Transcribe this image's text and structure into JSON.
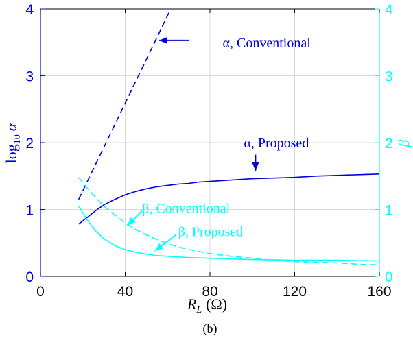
{
  "caption": "(b)",
  "colors": {
    "left_axis": "#0000dd",
    "right_axis": "#00ffff",
    "axes": "#000000",
    "grid": "#d8d8d8"
  },
  "chart_data": {
    "type": "line",
    "xlabel": "R_L (Ω)",
    "xlabel_parts": {
      "var": "R",
      "sub": "L",
      "unit": "(Ω)"
    },
    "ylabel_left": "log10 α",
    "ylabel_left_parts": {
      "fn": "log",
      "sub": "10",
      "var": "α"
    },
    "ylabel_right": "β",
    "xlim": [
      0,
      160
    ],
    "ylim_left": [
      0,
      4
    ],
    "ylim_right": [
      0,
      4
    ],
    "xticks": [
      0,
      40,
      80,
      120,
      160
    ],
    "yticks_left": [
      0,
      1,
      2,
      3,
      4
    ],
    "yticks_right": [
      0,
      1,
      2,
      3,
      4
    ],
    "grid": true,
    "series": [
      {
        "name": "α, Conventional",
        "axis": "left",
        "style": "dashed",
        "color": "#0000dd",
        "x": [
          18,
          61.5
        ],
        "y": [
          1.15,
          4.0
        ]
      },
      {
        "name": "α, Proposed",
        "axis": "left",
        "style": "solid",
        "color": "#0000dd",
        "x": [
          18,
          22,
          26,
          30,
          35,
          40,
          45,
          50,
          55,
          60,
          65,
          70,
          75,
          80,
          90,
          100,
          110,
          120,
          130,
          140,
          150,
          160
        ],
        "y": [
          0.78,
          0.88,
          0.98,
          1.07,
          1.15,
          1.22,
          1.27,
          1.31,
          1.34,
          1.36,
          1.38,
          1.39,
          1.41,
          1.42,
          1.44,
          1.46,
          1.47,
          1.48,
          1.5,
          1.51,
          1.52,
          1.53
        ]
      },
      {
        "name": "β, Conventional",
        "axis": "right",
        "style": "dashed",
        "color": "#00ffff",
        "x": [
          18,
          22,
          26,
          30,
          35,
          40,
          45,
          50,
          55,
          60,
          65,
          70,
          80,
          90,
          100,
          110,
          120,
          130,
          140,
          150,
          160
        ],
        "y": [
          1.48,
          1.32,
          1.18,
          1.05,
          0.92,
          0.8,
          0.7,
          0.62,
          0.55,
          0.49,
          0.44,
          0.4,
          0.34,
          0.3,
          0.27,
          0.24,
          0.22,
          0.21,
          0.2,
          0.18,
          0.17
        ]
      },
      {
        "name": "β, Proposed",
        "axis": "right",
        "style": "solid",
        "color": "#00ffff",
        "x": [
          18,
          22,
          26,
          30,
          35,
          40,
          45,
          50,
          55,
          60,
          70,
          80,
          90,
          100,
          120,
          140,
          160
        ],
        "y": [
          1.05,
          0.85,
          0.68,
          0.56,
          0.46,
          0.4,
          0.36,
          0.33,
          0.31,
          0.3,
          0.28,
          0.27,
          0.26,
          0.25,
          0.24,
          0.24,
          0.23
        ]
      }
    ],
    "annotations": [
      {
        "name": "α, Conventional",
        "color": "#0000dd",
        "label_x": 86,
        "label_y": 3.5,
        "arrow_from": [
          70,
          3.53
        ],
        "arrow_to": [
          56,
          3.53
        ]
      },
      {
        "name": "α, Proposed",
        "color": "#0000dd",
        "label_x": 96,
        "label_y": 2.0,
        "arrow_from": [
          101.5,
          1.82
        ],
        "arrow_to": [
          101.5,
          1.58
        ]
      },
      {
        "name": "β, Conventional",
        "color": "#00ffff",
        "label_x": 48,
        "label_y": 1.02,
        "arrow_from": [
          48,
          0.98
        ],
        "arrow_to": [
          41,
          0.76
        ]
      },
      {
        "name": "β, Proposed",
        "color": "#00ffff",
        "label_x": 65,
        "label_y": 0.67,
        "arrow_from": [
          64,
          0.62
        ],
        "arrow_to": [
          54,
          0.38
        ]
      }
    ]
  }
}
